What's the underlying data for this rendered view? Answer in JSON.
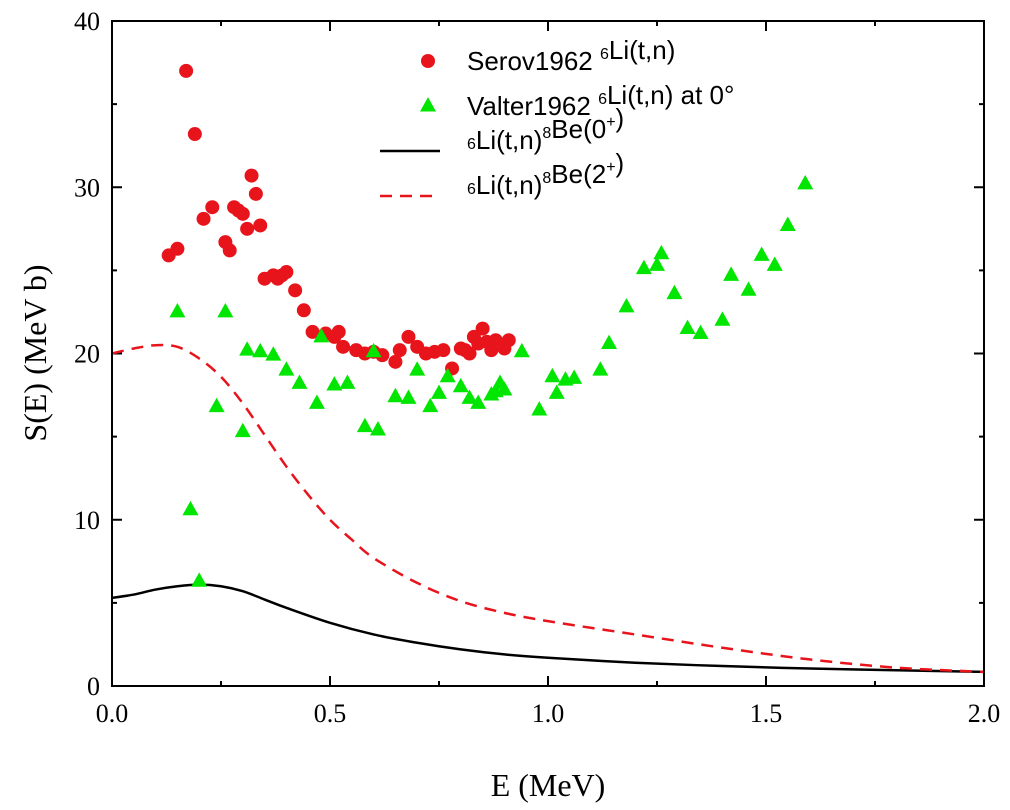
{
  "chart_data": {
    "type": "scatter",
    "xlabel": "E (MeV)",
    "ylabel": "S(E) (MeV b)",
    "xlim": [
      0.0,
      2.0
    ],
    "ylim": [
      0,
      40
    ],
    "x_ticks": [
      "0.0",
      "0.5",
      "1.0",
      "1.5",
      "2.0"
    ],
    "y_ticks": [
      "0",
      "10",
      "20",
      "30",
      "40"
    ],
    "legend_position": "top-right",
    "series": [
      {
        "name": "Serov1962 6Li(t,n)",
        "legend": {
          "pre": "Serov1962 ",
          "sup1": "6",
          "mid": "Li(t,n)",
          "sup2": "",
          "post": "",
          "sup3": "",
          "end": ""
        },
        "marker": "circle",
        "color": "#e8141c",
        "x": [
          0.13,
          0.15,
          0.17,
          0.19,
          0.21,
          0.23,
          0.26,
          0.27,
          0.28,
          0.29,
          0.3,
          0.31,
          0.32,
          0.33,
          0.34,
          0.35,
          0.37,
          0.38,
          0.39,
          0.4,
          0.42,
          0.44,
          0.46,
          0.49,
          0.51,
          0.52,
          0.53,
          0.56,
          0.58,
          0.6,
          0.62,
          0.65,
          0.66,
          0.68,
          0.7,
          0.72,
          0.74,
          0.76,
          0.78,
          0.8,
          0.81,
          0.82,
          0.83,
          0.84,
          0.85,
          0.86,
          0.87,
          0.88,
          0.9,
          0.91
        ],
        "y": [
          25.9,
          26.3,
          37.0,
          33.2,
          28.1,
          28.8,
          26.7,
          26.2,
          28.8,
          28.6,
          28.4,
          27.5,
          30.7,
          29.6,
          27.7,
          24.5,
          24.7,
          24.5,
          24.7,
          24.9,
          23.8,
          22.6,
          21.3,
          21.2,
          21.0,
          21.3,
          20.4,
          20.2,
          20.0,
          20.1,
          19.9,
          19.5,
          20.2,
          21.0,
          20.4,
          20.0,
          20.1,
          20.2,
          19.1,
          20.3,
          20.2,
          20.0,
          21.0,
          20.6,
          21.5,
          20.7,
          20.2,
          20.8,
          20.3,
          20.8
        ]
      },
      {
        "name": "Valter1962 6Li(t,n) at 0°",
        "legend": {
          "pre": "Valter1962 ",
          "sup1": "6",
          "mid": "Li(t,n) at 0°",
          "sup2": "",
          "post": "",
          "sup3": "",
          "end": ""
        },
        "marker": "triangle",
        "color": "#00e600",
        "x": [
          0.15,
          0.18,
          0.2,
          0.24,
          0.26,
          0.3,
          0.31,
          0.34,
          0.37,
          0.4,
          0.43,
          0.47,
          0.48,
          0.51,
          0.54,
          0.58,
          0.6,
          0.61,
          0.65,
          0.68,
          0.7,
          0.73,
          0.75,
          0.77,
          0.8,
          0.82,
          0.84,
          0.87,
          0.88,
          0.89,
          0.9,
          0.94,
          0.98,
          1.01,
          1.02,
          1.04,
          1.06,
          1.12,
          1.14,
          1.18,
          1.22,
          1.25,
          1.26,
          1.29,
          1.32,
          1.35,
          1.4,
          1.42,
          1.46,
          1.49,
          1.52,
          1.55,
          1.59
        ],
        "y": [
          22.5,
          10.6,
          6.3,
          16.8,
          22.5,
          15.3,
          20.2,
          20.1,
          19.9,
          19.0,
          18.2,
          17.0,
          21.0,
          18.1,
          18.2,
          15.6,
          20.1,
          15.4,
          17.4,
          17.3,
          19.0,
          16.8,
          17.6,
          18.6,
          18.0,
          17.3,
          17.0,
          17.5,
          17.7,
          18.2,
          17.8,
          20.1,
          16.6,
          18.6,
          17.6,
          18.4,
          18.5,
          19.0,
          20.6,
          22.8,
          25.1,
          25.3,
          26.0,
          23.6,
          21.5,
          21.2,
          22.0,
          24.7,
          23.8,
          25.9,
          25.3,
          27.7,
          30.2
        ]
      },
      {
        "name": "6Li(t,n)8Be(0+)",
        "legend": {
          "pre": "",
          "sup1": "6",
          "mid": "Li(t,n)",
          "sup2": "8",
          "post": "Be(0",
          "sup3": "+",
          "end": ")"
        },
        "marker": "solid-line",
        "color": "#000000",
        "x": [
          0.0,
          0.05,
          0.1,
          0.15,
          0.2,
          0.25,
          0.3,
          0.35,
          0.4,
          0.5,
          0.6,
          0.7,
          0.8,
          0.9,
          1.0,
          1.2,
          1.4,
          1.6,
          1.8,
          2.0
        ],
        "y": [
          5.3,
          5.5,
          5.8,
          6.0,
          6.1,
          6.0,
          5.7,
          5.2,
          4.7,
          3.8,
          3.1,
          2.6,
          2.2,
          1.9,
          1.7,
          1.4,
          1.2,
          1.05,
          0.95,
          0.85
        ]
      },
      {
        "name": "6Li(t,n)8Be(2+)",
        "legend": {
          "pre": "",
          "sup1": "6",
          "mid": "Li(t,n)",
          "sup2": "8",
          "post": "Be(2",
          "sup3": "+",
          "end": ")"
        },
        "marker": "dashed-line",
        "color": "#e8141c",
        "x": [
          0.0,
          0.05,
          0.1,
          0.15,
          0.2,
          0.25,
          0.3,
          0.35,
          0.4,
          0.45,
          0.5,
          0.55,
          0.6,
          0.7,
          0.8,
          0.9,
          1.0,
          1.2,
          1.4,
          1.6,
          1.8,
          2.0
        ],
        "y": [
          20.0,
          20.3,
          20.5,
          20.4,
          19.7,
          18.6,
          17.0,
          15.1,
          13.2,
          11.5,
          10.0,
          8.8,
          7.7,
          6.2,
          5.1,
          4.4,
          3.9,
          3.1,
          2.3,
          1.6,
          1.1,
          0.85
        ]
      }
    ]
  }
}
